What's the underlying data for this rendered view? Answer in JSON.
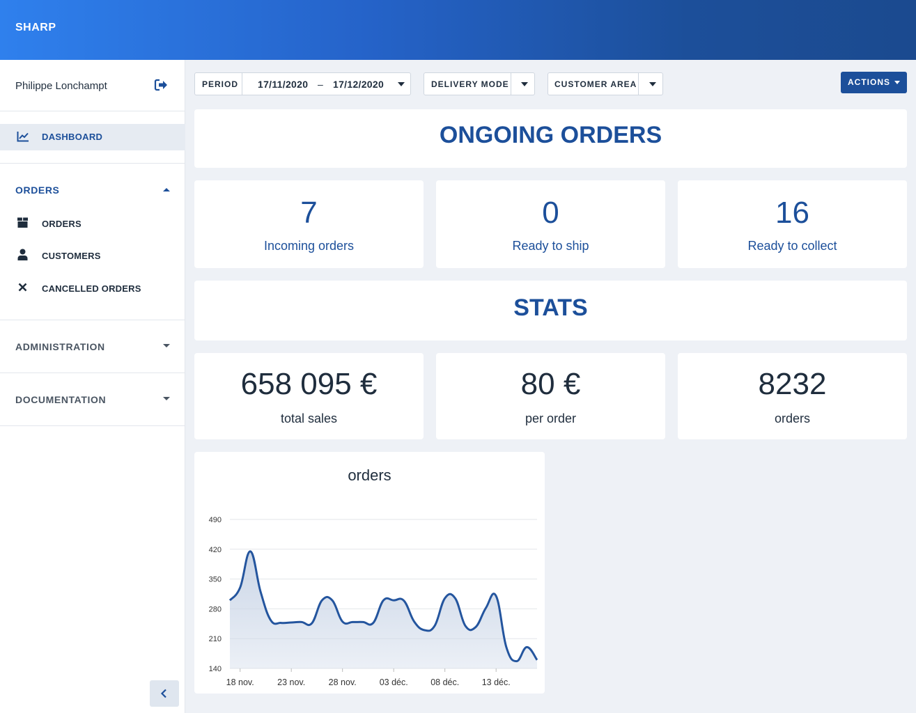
{
  "header": {
    "brand": "SHARP"
  },
  "sidebar": {
    "user_name": "Philippe Lonchampt",
    "dashboard_label": "DASHBOARD",
    "groups": {
      "orders": {
        "label": "ORDERS",
        "items": [
          "ORDERS",
          "CUSTOMERS",
          "CANCELLED ORDERS"
        ]
      },
      "administration": {
        "label": "ADMINISTRATION"
      },
      "documentation": {
        "label": "DOCUMENTATION"
      }
    }
  },
  "filters": {
    "period": {
      "label": "PERIOD",
      "start": "17/11/2020",
      "dash": "–",
      "end": "17/12/2020"
    },
    "delivery_mode": {
      "label": "DELIVERY MODE"
    },
    "customer_area": {
      "label": "CUSTOMER AREA"
    },
    "actions_label": "ACTIONS"
  },
  "ongoing": {
    "title": "ONGOING ORDERS",
    "cards": [
      {
        "value": "7",
        "label": "Incoming orders"
      },
      {
        "value": "0",
        "label": "Ready to ship"
      },
      {
        "value": "16",
        "label": "Ready to collect"
      }
    ]
  },
  "stats": {
    "title": "STATS",
    "cards": [
      {
        "value": "658 095 €",
        "label": "total sales"
      },
      {
        "value": "80 €",
        "label": "per order"
      },
      {
        "value": "8232",
        "label": "orders"
      }
    ]
  },
  "colors": {
    "accent": "#1c4f9a",
    "line": "#24559e",
    "fill": "#c8d4e6"
  },
  "chart_data": {
    "type": "area",
    "title": "orders",
    "xlabel": "",
    "ylabel": "",
    "ylim": [
      140,
      490
    ],
    "yticks": [
      140,
      210,
      280,
      350,
      420,
      490
    ],
    "xticks": [
      {
        "day": 1,
        "label": "18 nov."
      },
      {
        "day": 6,
        "label": "23 nov."
      },
      {
        "day": 11,
        "label": "28 nov."
      },
      {
        "day": 16,
        "label": "03 déc."
      },
      {
        "day": 21,
        "label": "08 déc."
      },
      {
        "day": 26,
        "label": "13 déc."
      }
    ],
    "grid": true,
    "legend": "none",
    "x": [
      0,
      1,
      2,
      3,
      4,
      5,
      6,
      7,
      8,
      9,
      10,
      11,
      12,
      13,
      14,
      15,
      16,
      17,
      18,
      19,
      20,
      21,
      22,
      23,
      24,
      25,
      26,
      27,
      28,
      29,
      30
    ],
    "values": [
      300,
      330,
      415,
      320,
      253,
      247,
      248,
      249,
      246,
      300,
      300,
      250,
      249,
      249,
      247,
      300,
      300,
      299,
      250,
      230,
      240,
      305,
      305,
      240,
      237,
      282,
      310,
      190,
      157,
      190,
      160
    ]
  }
}
